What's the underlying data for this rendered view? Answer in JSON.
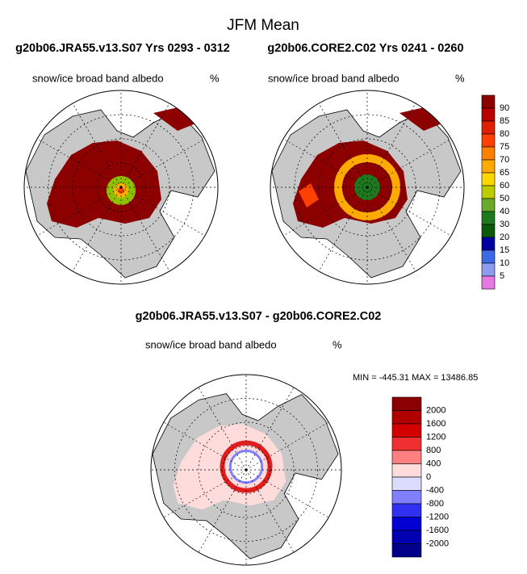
{
  "title": "JFM Mean",
  "panels": [
    {
      "title": "g20b06.JRA55.v13.S07  Yrs 0293 - 0312",
      "field": "snow/ice broad band albedo",
      "units": "%"
    },
    {
      "title": "g20b06.CORE2.C02  Yrs 0241 - 0260",
      "field": "snow/ice broad band albedo",
      "units": "%"
    },
    {
      "title": "g20b06.JRA55.v13.S07 - g20b06.CORE2.C02",
      "field": "snow/ice broad band albedo",
      "units": "%"
    }
  ],
  "colorbar_top": {
    "labels": [
      90,
      85,
      80,
      75,
      70,
      65,
      60,
      50,
      40,
      30,
      20,
      15,
      10,
      5
    ],
    "colors": [
      "#8c0000",
      "#b80000",
      "#e01e00",
      "#ff4000",
      "#ff8000",
      "#ffaa00",
      "#ffd700",
      "#bccc00",
      "#6aaa2a",
      "#1e781e",
      "#0a5a0a",
      "#0000a0",
      "#3c6ae6",
      "#8c9cf0",
      "#e678e6"
    ]
  },
  "colorbar_bottom": {
    "labels": [
      2000,
      1600,
      1200,
      800,
      400,
      0,
      -400,
      -800,
      -1200,
      -1600,
      -2000
    ],
    "colors": [
      "#8b0000",
      "#b00000",
      "#d40000",
      "#f03030",
      "#ff8080",
      "#ffdcdc",
      "#dcdcff",
      "#8080ff",
      "#3030f0",
      "#0000d4",
      "#0000b0",
      "#00008b"
    ]
  },
  "minmax": "MIN = -445.31 MAX = 13486.85"
}
